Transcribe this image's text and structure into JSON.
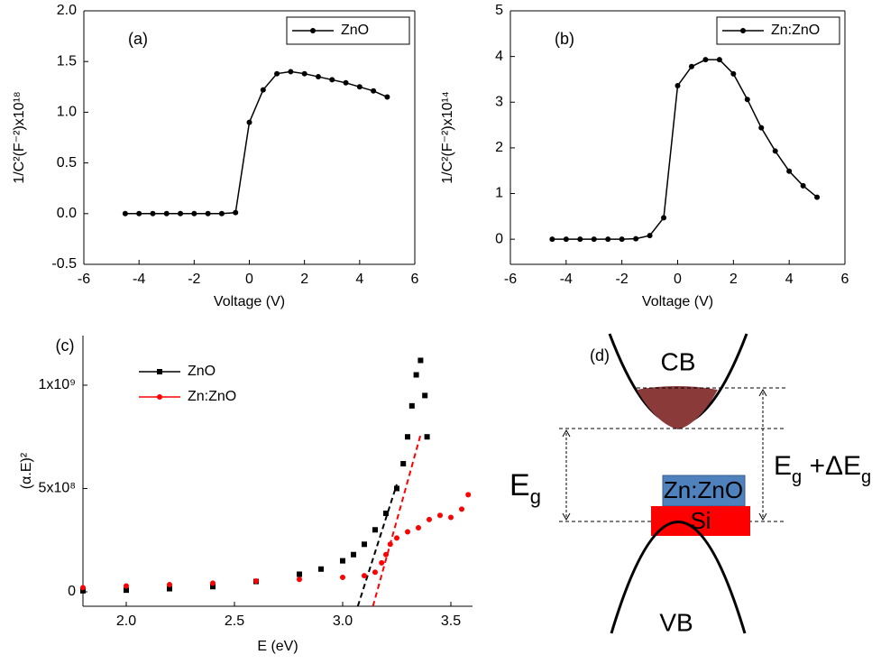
{
  "chart_data": [
    {
      "type": "line",
      "annotation": "(a)",
      "x_label": "Voltage (V)",
      "y_label": "1/C²(F⁻²)x10¹⁸",
      "x": [
        -4.5,
        -4,
        -3.5,
        -3,
        -2.5,
        -2,
        -1.5,
        -1,
        -0.5,
        0,
        0.5,
        1,
        1.5,
        2,
        2.5,
        3,
        3.5,
        4,
        4.5,
        5
      ],
      "series": [
        {
          "name": "ZnO",
          "color": "#000000",
          "marker": "circle",
          "values": [
            0,
            0,
            0,
            0,
            0,
            0,
            0,
            0,
            0.01,
            0.9,
            1.22,
            1.38,
            1.4,
            1.38,
            1.35,
            1.32,
            1.29,
            1.25,
            1.21,
            1.15
          ]
        }
      ],
      "xlim": [
        -6,
        6
      ],
      "xticks": [
        -6,
        -4,
        -2,
        0,
        2,
        4,
        6
      ],
      "ylim": [
        -0.5,
        2
      ],
      "yticks": [
        -0.5,
        {
          "value": 0,
          "label": "0.0"
        },
        0.5,
        {
          "value": 1,
          "label": "1.0"
        },
        1.5,
        {
          "value": 2,
          "label": "2.0"
        }
      ],
      "legend": "upper right"
    },
    {
      "type": "line",
      "annotation": "(b)",
      "x_label": "Voltage (V)",
      "y_label": "1/C²(F⁻²)x10¹⁴",
      "x": [
        -4.5,
        -4,
        -3.5,
        -3,
        -2.5,
        -2,
        -1.5,
        -1,
        -0.5,
        0,
        0.5,
        1,
        1.5,
        2,
        2.5,
        3,
        3.5,
        4,
        4.5,
        5
      ],
      "series": [
        {
          "name": "Zn:ZnO",
          "color": "#000000",
          "marker": "circle",
          "values": [
            0,
            0,
            0,
            0,
            0,
            0,
            0.01,
            0.08,
            0.47,
            3.36,
            3.78,
            3.93,
            3.93,
            3.62,
            3.06,
            2.44,
            1.93,
            1.49,
            1.17,
            0.92
          ]
        }
      ],
      "xlim": [
        -6,
        6
      ],
      "xticks": [
        -6,
        -4,
        -2,
        0,
        2,
        4,
        6
      ],
      "ylim": [
        -0.55,
        5
      ],
      "yticks": [
        0,
        1,
        2,
        3,
        4,
        5
      ],
      "legend": "upper right"
    },
    {
      "type": "scatter",
      "annotation": "(c)",
      "x_label": "E (eV)",
      "y_label": "(α.E)²",
      "series": [
        {
          "name": "ZnO",
          "color": "#000000",
          "marker": "square",
          "x": [
            1.8,
            2.0,
            2.2,
            2.4,
            2.6,
            2.8,
            2.9,
            3.0,
            3.05,
            3.1,
            3.15,
            3.2,
            3.25,
            3.28,
            3.3,
            3.32,
            3.34,
            3.36,
            3.38,
            3.39
          ],
          "values": [
            5000000,
            8000000,
            15000000,
            25000000,
            50000000,
            85000000,
            110000000,
            150000000,
            180000000,
            230000000,
            300000000,
            380000000,
            500000000,
            620000000,
            750000000,
            900000000,
            1050000000,
            1120000000,
            950000000,
            750000000
          ]
        },
        {
          "name": "Zn:ZnO",
          "color": "#ff0000",
          "marker": "circle",
          "x": [
            1.8,
            2.0,
            2.2,
            2.4,
            2.6,
            2.8,
            3.0,
            3.1,
            3.15,
            3.18,
            3.2,
            3.22,
            3.25,
            3.3,
            3.35,
            3.4,
            3.45,
            3.5,
            3.55,
            3.58
          ],
          "values": [
            20000000,
            28000000,
            35000000,
            42000000,
            52000000,
            60000000,
            70000000,
            78000000,
            95000000,
            140000000,
            180000000,
            230000000,
            260000000,
            290000000,
            310000000,
            350000000,
            370000000,
            360000000,
            400000000,
            470000000
          ]
        }
      ],
      "fits": [
        {
          "color": "#000000",
          "x": [
            3.07,
            3.25
          ],
          "values": [
            -70000000,
            520000000
          ]
        },
        {
          "color": "#ff0000",
          "x": [
            3.14,
            3.36
          ],
          "values": [
            -70000000,
            760000000
          ]
        }
      ],
      "xlim": [
        1.8,
        3.6
      ],
      "xticks": [
        {
          "value": 2,
          "label": "2.0"
        },
        2.5,
        {
          "value": 3,
          "label": "3.0"
        },
        3.5
      ],
      "ylim": [
        -70000000,
        1240000000
      ],
      "yticks": [
        0,
        {
          "value": 500000000,
          "label": "5x10⁸"
        },
        {
          "value": 1000000000,
          "label": "1x10⁹"
        }
      ],
      "legend": "upper left"
    }
  ],
  "diagram": {
    "label": "(d)",
    "cb": "CB",
    "vb": "VB",
    "layer_top": "Zn:ZnO",
    "layer_bottom": "Si",
    "gap_left": [
      "E",
      "g"
    ],
    "gap_right": [
      "E",
      "g",
      " +ΔE",
      "g"
    ]
  }
}
